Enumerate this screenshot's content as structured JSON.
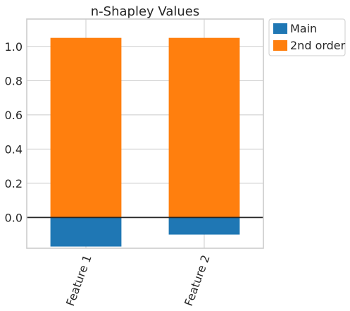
{
  "chart_data": {
    "type": "bar",
    "stacked": true,
    "title": "n-Shapley Values",
    "categories": [
      "Feature 1",
      "Feature 2"
    ],
    "series": [
      {
        "name": "Main",
        "color": "#1f77b4",
        "values": [
          -0.17,
          -0.1
        ]
      },
      {
        "name": "2nd order",
        "color": "#ff7f0e",
        "values": [
          1.05,
          1.05
        ]
      }
    ],
    "yticks": [
      "0.0",
      "0.2",
      "0.4",
      "0.6",
      "0.8",
      "1.0"
    ],
    "ylim": [
      -0.18,
      1.16
    ],
    "grid": true,
    "zero_line": true,
    "legend_placement": "outside-top-right",
    "xtick_rotation_deg": -70
  }
}
